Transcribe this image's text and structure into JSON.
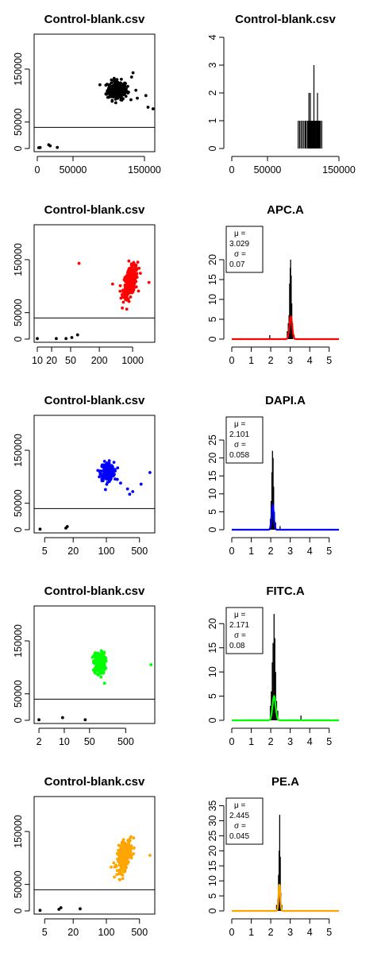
{
  "colors": {
    "row1": "#000000",
    "row2": "#ff0000",
    "row3": "#0000ff",
    "row4": "#00ff00",
    "row5": "#ffa500",
    "mark_low": "#000000"
  },
  "chart_data": [
    {
      "type": "scatter",
      "title": "Control-blank.csv",
      "color": "#000000",
      "xscale": "linear",
      "xlim": [
        0,
        160000
      ],
      "ylim": [
        0,
        210000
      ],
      "xticks": [
        0,
        50000,
        150000
      ],
      "xtick_labels": [
        "0",
        "50000",
        "150000"
      ],
      "yticks": [
        0,
        50000,
        150000
      ],
      "ytick_labels": [
        "0",
        "50000",
        "150000"
      ],
      "hline": 40000,
      "cluster": {
        "cx": 112000,
        "cy": 110000,
        "sx": 7000,
        "sy": 9000,
        "n": 220
      },
      "points": [
        [
          2000,
          1500
        ],
        [
          4000,
          1800
        ],
        [
          16000,
          7000
        ],
        [
          18000,
          5000
        ],
        [
          28000,
          2000
        ],
        [
          138000,
          110000
        ],
        [
          140000,
          95000
        ],
        [
          152000,
          100000
        ],
        [
          162000,
          75000
        ],
        [
          155000,
          78000
        ],
        [
          132000,
          135000
        ],
        [
          134000,
          143000
        ],
        [
          100000,
          97000
        ],
        [
          96000,
          103000
        ]
      ]
    },
    {
      "type": "histogram",
      "title": "Control-blank.csv",
      "xscale": "linear",
      "xlim": [
        0,
        150000
      ],
      "ylim": [
        0,
        4
      ],
      "xticks": [
        0,
        50000,
        150000
      ],
      "xtick_labels": [
        "0",
        "50000",
        "150000"
      ],
      "yticks": [
        0,
        1,
        2,
        3,
        4
      ],
      "ytick_labels": [
        "0",
        "1",
        "2",
        "3",
        "4"
      ],
      "bars": [
        [
          93000,
          1
        ],
        [
          95000,
          1
        ],
        [
          97000,
          1
        ],
        [
          99000,
          1
        ],
        [
          101000,
          1
        ],
        [
          103000,
          1
        ],
        [
          104000,
          1
        ],
        [
          106000,
          1
        ],
        [
          107000,
          1
        ],
        [
          108000,
          2
        ],
        [
          109000,
          1
        ],
        [
          110000,
          2
        ],
        [
          111000,
          1
        ],
        [
          112000,
          1
        ],
        [
          113000,
          1
        ],
        [
          114000,
          1
        ],
        [
          115000,
          3
        ],
        [
          116000,
          1
        ],
        [
          117000,
          1
        ],
        [
          118000,
          1
        ],
        [
          119000,
          1
        ],
        [
          120000,
          2
        ],
        [
          121000,
          1
        ],
        [
          122000,
          1
        ],
        [
          123000,
          1
        ],
        [
          124000,
          1
        ],
        [
          126000,
          1
        ]
      ]
    },
    {
      "type": "scatter",
      "title": "Control-blank.csv",
      "color": "#ff0000",
      "xscale": "log",
      "xlim": [
        10,
        2500
      ],
      "ylim": [
        0,
        210000
      ],
      "xticks": [
        10,
        20,
        50,
        200,
        1000
      ],
      "xtick_labels": [
        "10",
        "20",
        "50",
        "200",
        "1000"
      ],
      "yticks": [
        0,
        50000,
        150000
      ],
      "ytick_labels": [
        "0",
        "50000",
        "150000"
      ],
      "hline": 40000,
      "cluster": {
        "cx": 900,
        "cy": 108000,
        "sx": 170,
        "sy": 13000,
        "n": 260,
        "tilt": 0.55
      },
      "points": [
        [
          10,
          1000
        ],
        [
          25,
          1000
        ],
        [
          40,
          1000
        ],
        [
          53,
          3000
        ],
        [
          70,
          8000
        ],
        [
          75,
          143000
        ],
        [
          380,
          104000
        ],
        [
          2200,
          107000
        ],
        [
          600,
          84000
        ],
        [
          680,
          78000
        ]
      ]
    },
    {
      "type": "density",
      "title": "APC.A",
      "color": "#ff0000",
      "xscale": "linear",
      "xlim": [
        0,
        5.5
      ],
      "ylim": [
        0,
        28
      ],
      "xticks": [
        0,
        1,
        2,
        3,
        4,
        5
      ],
      "xtick_labels": [
        "0",
        "1",
        "2",
        "3",
        "4",
        "5"
      ],
      "yticks": [
        0,
        5,
        10,
        15,
        20
      ],
      "ytick_labels": [
        "0",
        "5",
        "10",
        "15",
        "20"
      ],
      "legend": {
        "l1": "μ =",
        "l2": "3.029",
        "l3": "σ =",
        "l4": "0.07"
      },
      "mean": 3.029,
      "sd": 0.07,
      "spikes": [
        [
          2.85,
          2
        ],
        [
          2.9,
          4
        ],
        [
          2.94,
          6
        ],
        [
          2.97,
          14
        ],
        [
          3.0,
          18
        ],
        [
          3.02,
          20
        ],
        [
          3.05,
          16
        ],
        [
          3.08,
          9
        ],
        [
          3.12,
          4
        ],
        [
          1.95,
          1
        ],
        [
          3.2,
          1
        ]
      ]
    },
    {
      "type": "scatter",
      "title": "Control-blank.csv",
      "color": "#0000ff",
      "xscale": "log",
      "xlim": [
        3.5,
        900
      ],
      "ylim": [
        0,
        210000
      ],
      "xticks": [
        5,
        20,
        100,
        500
      ],
      "xtick_labels": [
        "5",
        "20",
        "100",
        "500"
      ],
      "yticks": [
        0,
        50000,
        150000
      ],
      "ytick_labels": [
        "0",
        "50000",
        "150000"
      ],
      "hline": 40000,
      "cluster": {
        "cx": 105,
        "cy": 110000,
        "sx": 18,
        "sy": 8500,
        "n": 230,
        "tilt": 0
      },
      "points": [
        [
          4,
          1000
        ],
        [
          14,
          3000
        ],
        [
          15,
          6000
        ],
        [
          280,
          77000
        ],
        [
          310,
          67000
        ],
        [
          360,
          72000
        ],
        [
          540,
          86000
        ],
        [
          830,
          108000
        ],
        [
          200,
          88000
        ],
        [
          170,
          95000
        ]
      ]
    },
    {
      "type": "density",
      "title": "DAPI.A",
      "color": "#0000ff",
      "xscale": "linear",
      "xlim": [
        0,
        5.5
      ],
      "ylim": [
        0,
        31
      ],
      "xticks": [
        0,
        1,
        2,
        3,
        4,
        5
      ],
      "xtick_labels": [
        "0",
        "1",
        "2",
        "3",
        "4",
        "5"
      ],
      "yticks": [
        0,
        5,
        10,
        15,
        20,
        25
      ],
      "ytick_labels": [
        "0",
        "5",
        "10",
        "15",
        "20",
        "25"
      ],
      "legend": {
        "l1": "μ =",
        "l2": "2.101",
        "l3": "σ =",
        "l4": "0.058"
      },
      "mean": 2.101,
      "sd": 0.058,
      "spikes": [
        [
          1.98,
          3
        ],
        [
          2.02,
          8
        ],
        [
          2.06,
          16
        ],
        [
          2.09,
          22
        ],
        [
          2.12,
          20
        ],
        [
          2.15,
          12
        ],
        [
          2.19,
          5
        ],
        [
          2.25,
          2
        ],
        [
          2.48,
          1
        ]
      ]
    },
    {
      "type": "scatter",
      "title": "Control-blank.csv",
      "color": "#00ff00",
      "xscale": "log",
      "xlim": [
        1.8,
        2600
      ],
      "ylim": [
        0,
        210000
      ],
      "xticks": [
        2,
        10,
        50,
        500
      ],
      "xtick_labels": [
        "2",
        "10",
        "50",
        "500"
      ],
      "yticks": [
        0,
        50000,
        150000
      ],
      "ytick_labels": [
        "0",
        "50000",
        "150000"
      ],
      "hline": 40000,
      "cluster": {
        "cx": 95,
        "cy": 108000,
        "sx": 18,
        "sy": 10000,
        "n": 240,
        "tilt": 0
      },
      "points": [
        [
          2,
          1000
        ],
        [
          9,
          5000
        ],
        [
          38,
          1000
        ],
        [
          2500,
          105000
        ],
        [
          85,
          125000
        ],
        [
          130,
          70000
        ],
        [
          70,
          90000
        ]
      ]
    },
    {
      "type": "density",
      "title": "FITC.A",
      "color": "#00ff00",
      "xscale": "linear",
      "xlim": [
        0,
        5.5
      ],
      "ylim": [
        0,
        23
      ],
      "xticks": [
        0,
        1,
        2,
        3,
        4,
        5
      ],
      "xtick_labels": [
        "0",
        "1",
        "2",
        "3",
        "4",
        "5"
      ],
      "yticks": [
        0,
        5,
        10,
        15,
        20
      ],
      "ytick_labels": [
        "0",
        "5",
        "10",
        "15",
        "20"
      ],
      "legend": {
        "l1": "μ =",
        "l2": "2.171",
        "l3": "σ =",
        "l4": "0.08"
      },
      "mean": 2.171,
      "sd": 0.08,
      "spikes": [
        [
          1.98,
          3
        ],
        [
          2.03,
          6
        ],
        [
          2.08,
          12
        ],
        [
          2.12,
          16
        ],
        [
          2.17,
          22
        ],
        [
          2.21,
          17
        ],
        [
          2.25,
          10
        ],
        [
          2.3,
          4
        ],
        [
          2.36,
          2
        ],
        [
          3.55,
          1
        ]
      ]
    },
    {
      "type": "scatter",
      "title": "Control-blank.csv",
      "color": "#ffa500",
      "xscale": "log",
      "xlim": [
        3.5,
        900
      ],
      "ylim": [
        0,
        210000
      ],
      "xticks": [
        5,
        20,
        100,
        500
      ],
      "xtick_labels": [
        "5",
        "20",
        "100",
        "500"
      ],
      "yticks": [
        0,
        50000,
        150000
      ],
      "ytick_labels": [
        "0",
        "50000",
        "150000"
      ],
      "hline": 40000,
      "cluster": {
        "cx": 240,
        "cy": 105000,
        "sx": 45,
        "sy": 13000,
        "n": 240,
        "tilt": 0.5
      },
      "points": [
        [
          4,
          1000
        ],
        [
          10,
          3000
        ],
        [
          11,
          6000
        ],
        [
          28,
          4000
        ],
        [
          830,
          105000
        ],
        [
          150,
          83000
        ],
        [
          330,
          140000
        ]
      ]
    },
    {
      "type": "density",
      "title": "PE.A",
      "color": "#ffa500",
      "xscale": "linear",
      "xlim": [
        0,
        5.5
      ],
      "ylim": [
        0,
        37
      ],
      "xticks": [
        0,
        1,
        2,
        3,
        4,
        5
      ],
      "xtick_labels": [
        "0",
        "1",
        "2",
        "3",
        "4",
        "5"
      ],
      "yticks": [
        0,
        5,
        10,
        15,
        20,
        25,
        30,
        35
      ],
      "ytick_labels": [
        "0",
        "5",
        "10",
        "15",
        "20",
        "25",
        "30",
        "35"
      ],
      "legend": {
        "l1": "μ =",
        "l2": "2.445",
        "l3": "σ =",
        "l4": "0.045"
      },
      "mean": 2.445,
      "sd": 0.045,
      "spikes": [
        [
          2.3,
          2
        ],
        [
          2.36,
          4
        ],
        [
          2.4,
          12
        ],
        [
          2.43,
          20
        ],
        [
          2.46,
          32
        ],
        [
          2.49,
          18
        ],
        [
          2.52,
          6
        ],
        [
          2.57,
          2
        ]
      ]
    }
  ]
}
